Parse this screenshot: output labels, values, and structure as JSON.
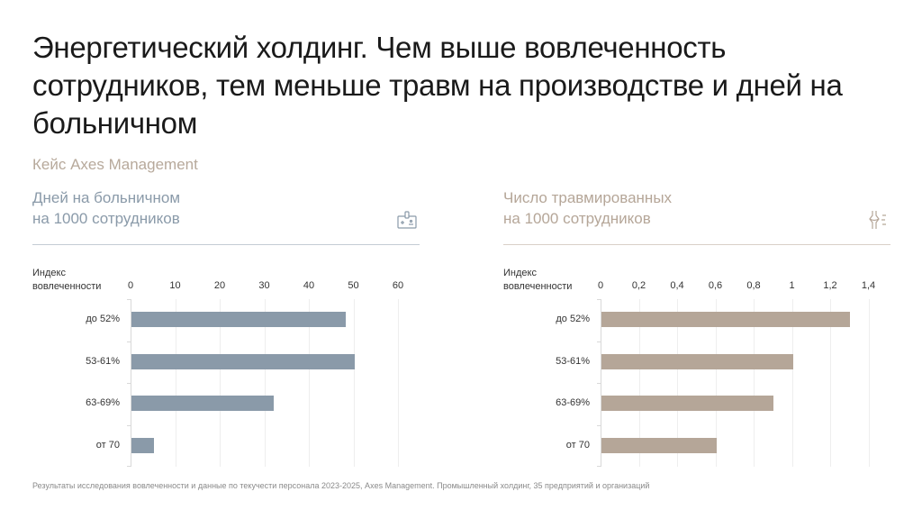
{
  "header": {
    "title": "Энергетический холдинг. Чем выше вовлеченность сотрудников, тем меньше травм на производстве и дней на больничном",
    "subtitle": "Кейс Axes Management"
  },
  "footnote": "Результаты исследования вовлеченности и данные по текучести персонала 2023-2025, Axes Management. Промышленный холдинг, 35 предприятий и организаций",
  "colors": {
    "left_accent": "#8a9aa9",
    "right_accent": "#b5a698",
    "left_title": "#8a9aa9",
    "right_title": "#b5a698"
  },
  "panels": [
    {
      "title_line1": "Дней на больничном",
      "title_line2": "на 1000 сотрудников",
      "icon": "sick-leave-badge-icon",
      "axis_label_line1": "Индекс",
      "axis_label_line2": "вовлеченности",
      "ticks": [
        "0",
        "10",
        "20",
        "30",
        "40",
        "50",
        "60"
      ],
      "categories": [
        "до 52%",
        "53-61%",
        "63-69%",
        "от 70"
      ],
      "values": [
        48,
        50,
        32,
        5
      ]
    },
    {
      "title_line1": "Число травмированных",
      "title_line2": "на 1000 сотрудников",
      "icon": "joint-injury-icon",
      "axis_label_line1": "Индекс",
      "axis_label_line2": "вовлеченности",
      "ticks": [
        "0",
        "0,2",
        "0,4",
        "0,6",
        "0,8",
        "1",
        "1,2",
        "1,4"
      ],
      "categories": [
        "до 52%",
        "53-61%",
        "63-69%",
        "от 70"
      ],
      "values": [
        1.3,
        1.0,
        0.9,
        0.6
      ]
    }
  ],
  "chart_data": [
    {
      "type": "bar",
      "orientation": "horizontal",
      "title": "Дней на больничном на 1000 сотрудников",
      "ylabel": "Индекс вовлеченности",
      "xlabel": "",
      "categories": [
        "до 52%",
        "53-61%",
        "63-69%",
        "от 70"
      ],
      "values": [
        48,
        50,
        32,
        5
      ],
      "xlim": [
        0,
        60
      ],
      "x_ticks": [
        0,
        10,
        20,
        30,
        40,
        50,
        60
      ],
      "grid": true,
      "color": "#8a9aa9"
    },
    {
      "type": "bar",
      "orientation": "horizontal",
      "title": "Число травмированных на 1000 сотрудников",
      "ylabel": "Индекс вовлеченности",
      "xlabel": "",
      "categories": [
        "до 52%",
        "53-61%",
        "63-69%",
        "от 70"
      ],
      "values": [
        1.3,
        1.0,
        0.9,
        0.6
      ],
      "xlim": [
        0,
        1.4
      ],
      "x_ticks": [
        0,
        0.2,
        0.4,
        0.6,
        0.8,
        1,
        1.2,
        1.4
      ],
      "grid": true,
      "color": "#b5a698"
    }
  ]
}
